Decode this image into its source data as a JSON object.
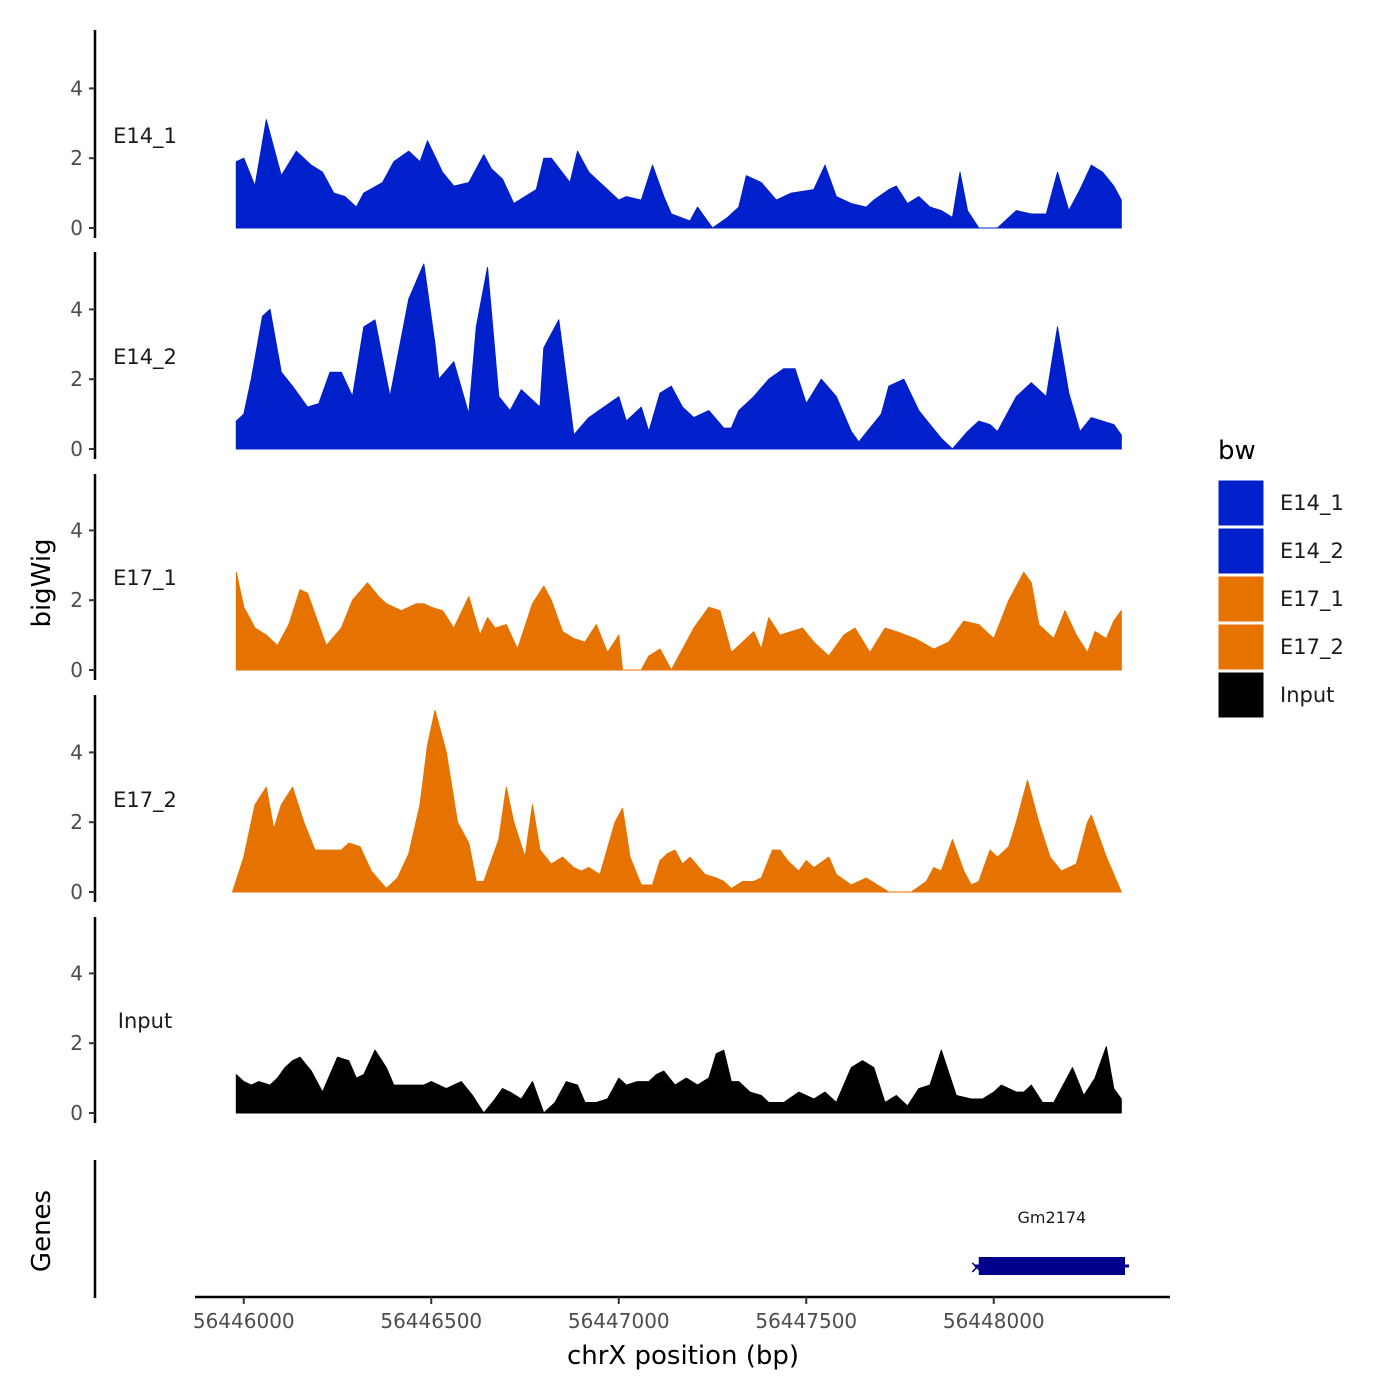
{
  "chart_data": {
    "type": "area",
    "ylabel": "bigWig",
    "xlabel": "chrX position (bp)",
    "genes_label": "Genes",
    "xlim": [
      56445870,
      56448470
    ],
    "ylim": [
      0,
      5.6
    ],
    "yticks": [
      0,
      2,
      4
    ],
    "ytick_labels": [
      "0",
      "2",
      "4"
    ],
    "xticks": [
      56446000,
      56446500,
      56447000,
      56447500,
      56448000
    ],
    "xtick_labels": [
      "56446000",
      "56446500",
      "56447000",
      "56447500",
      "56448000"
    ],
    "legend": {
      "title": "bw",
      "position": "right",
      "entries": [
        {
          "label": "E14_1",
          "color": "#0020CC"
        },
        {
          "label": "E14_2",
          "color": "#0020CC"
        },
        {
          "label": "E17_1",
          "color": "#E67200"
        },
        {
          "label": "E17_2",
          "color": "#E67200"
        },
        {
          "label": "Input",
          "color": "#000000"
        }
      ]
    },
    "series": [
      {
        "name": "E14_1",
        "color": "#0020CC",
        "x": [
          56445980,
          56446000,
          56446030,
          56446060,
          56446100,
          56446140,
          56446180,
          56446210,
          56446240,
          56446270,
          56446300,
          56446320,
          56446370,
          56446400,
          56446440,
          56446470,
          56446490,
          56446530,
          56446560,
          56446600,
          56446640,
          56446660,
          56446690,
          56446720,
          56446780,
          56446800,
          56446820,
          56446870,
          56446890,
          56446920,
          56447000,
          56447020,
          56447060,
          56447090,
          56447120,
          56447140,
          56447190,
          56447210,
          56447230,
          56447250,
          56447290,
          56447320,
          56447340,
          56447380,
          56447420,
          56447460,
          56447520,
          56447550,
          56447580,
          56447600,
          56447620,
          56447660,
          56447680,
          56447720,
          56447740,
          56447770,
          56447800,
          56447830,
          56447860,
          56447890,
          56447910,
          56447930,
          56447960,
          56447980,
          56448000,
          56448010,
          56448060,
          56448100,
          56448140,
          56448170,
          56448200,
          56448230,
          56448260,
          56448290,
          56448320,
          56448340
        ],
        "values": [
          1.9,
          2.0,
          1.2,
          3.1,
          1.5,
          2.2,
          1.8,
          1.6,
          1.0,
          0.9,
          0.6,
          1.0,
          1.3,
          1.9,
          2.2,
          1.9,
          2.5,
          1.6,
          1.2,
          1.3,
          2.1,
          1.7,
          1.4,
          0.7,
          1.1,
          2.0,
          2.0,
          1.3,
          2.2,
          1.6,
          0.8,
          0.9,
          0.8,
          1.8,
          0.9,
          0.4,
          0.2,
          0.6,
          0.3,
          0.0,
          0.3,
          0.6,
          1.5,
          1.3,
          0.8,
          1.0,
          1.1,
          1.8,
          0.9,
          0.8,
          0.7,
          0.6,
          0.8,
          1.1,
          1.2,
          0.7,
          0.9,
          0.6,
          0.5,
          0.3,
          1.6,
          0.5,
          0.0,
          0.0,
          0.0,
          0.0,
          0.5,
          0.4,
          0.4,
          1.6,
          0.5,
          1.1,
          1.8,
          1.6,
          1.2,
          0.8
        ]
      },
      {
        "name": "E14_2",
        "color": "#0020CC",
        "x": [
          56445980,
          56446000,
          56446020,
          56446050,
          56446070,
          56446100,
          56446130,
          56446170,
          56446200,
          56446230,
          56446260,
          56446290,
          56446320,
          56446350,
          56446390,
          56446440,
          56446480,
          56446510,
          56446520,
          56446560,
          56446600,
          56446620,
          56446650,
          56446680,
          56446710,
          56446740,
          56446790,
          56446800,
          56446840,
          56446880,
          56446920,
          56446960,
          56447000,
          56447020,
          56447060,
          56447080,
          56447110,
          56447140,
          56447170,
          56447200,
          56447240,
          56447280,
          56447300,
          56447320,
          56447360,
          56447400,
          56447440,
          56447470,
          56447500,
          56447540,
          56447580,
          56447620,
          56447640,
          56447670,
          56447700,
          56447720,
          56447760,
          56447800,
          56447830,
          56447860,
          56447890,
          56447930,
          56447960,
          56447990,
          56448010,
          56448060,
          56448100,
          56448140,
          56448170,
          56448200,
          56448230,
          56448260,
          56448290,
          56448320,
          56448340
        ],
        "values": [
          0.8,
          1.0,
          2.0,
          3.8,
          4.0,
          2.2,
          1.8,
          1.2,
          1.3,
          2.2,
          2.2,
          1.5,
          3.5,
          3.7,
          1.5,
          4.3,
          5.3,
          3.0,
          2.0,
          2.5,
          1.0,
          3.5,
          5.2,
          1.5,
          1.1,
          1.7,
          1.2,
          2.9,
          3.7,
          0.4,
          0.9,
          1.2,
          1.5,
          0.8,
          1.2,
          0.5,
          1.6,
          1.8,
          1.2,
          0.9,
          1.1,
          0.6,
          0.6,
          1.1,
          1.5,
          2.0,
          2.3,
          2.3,
          1.3,
          2.0,
          1.5,
          0.5,
          0.2,
          0.6,
          1.0,
          1.8,
          2.0,
          1.1,
          0.7,
          0.3,
          0.0,
          0.5,
          0.8,
          0.7,
          0.5,
          1.5,
          1.9,
          1.5,
          3.5,
          1.6,
          0.5,
          0.9,
          0.8,
          0.7,
          0.4
        ]
      },
      {
        "name": "E17_1",
        "color": "#E67200",
        "x": [
          56445980,
          56446000,
          56446030,
          56446060,
          56446090,
          56446120,
          56446150,
          56446170,
          56446220,
          56446260,
          56446290,
          56446330,
          56446360,
          56446380,
          56446420,
          56446460,
          56446480,
          56446500,
          56446530,
          56446560,
          56446600,
          56446630,
          56446650,
          56446670,
          56446700,
          56446730,
          56446770,
          56446800,
          56446820,
          56446850,
          56446880,
          56446910,
          56446940,
          56446970,
          56447000,
          56447010,
          56447060,
          56447080,
          56447110,
          56447140,
          56447200,
          56447240,
          56447270,
          56447300,
          56447320,
          56447360,
          56447380,
          56447400,
          56447430,
          56447460,
          56447490,
          56447520,
          56447560,
          56447600,
          56447630,
          56447670,
          56447710,
          56447740,
          56447790,
          56447840,
          56447880,
          56447920,
          56447960,
          56448000,
          56448040,
          56448080,
          56448100,
          56448120,
          56448160,
          56448190,
          56448220,
          56448250,
          56448270,
          56448300,
          56448320,
          56448340
        ],
        "values": [
          2.8,
          1.8,
          1.2,
          1.0,
          0.7,
          1.3,
          2.3,
          2.2,
          0.7,
          1.2,
          2.0,
          2.5,
          2.1,
          1.9,
          1.7,
          1.9,
          1.9,
          1.8,
          1.7,
          1.2,
          2.1,
          1.0,
          1.5,
          1.2,
          1.3,
          0.6,
          1.9,
          2.4,
          2.0,
          1.1,
          0.9,
          0.8,
          1.3,
          0.5,
          1.0,
          0.0,
          0.0,
          0.4,
          0.6,
          0.0,
          1.2,
          1.8,
          1.7,
          0.5,
          0.7,
          1.1,
          0.6,
          1.5,
          1.0,
          1.1,
          1.2,
          0.8,
          0.4,
          1.0,
          1.2,
          0.5,
          1.2,
          1.1,
          0.9,
          0.6,
          0.8,
          1.4,
          1.3,
          0.9,
          2.0,
          2.8,
          2.5,
          1.3,
          0.9,
          1.7,
          1.0,
          0.5,
          1.1,
          0.9,
          1.4,
          1.7
        ]
      },
      {
        "name": "E17_2",
        "color": "#E67200",
        "x": [
          56445970,
          56446000,
          56446030,
          56446060,
          56446080,
          56446100,
          56446130,
          56446160,
          56446190,
          56446230,
          56446260,
          56446280,
          56446310,
          56446340,
          56446380,
          56446410,
          56446440,
          56446470,
          56446490,
          56446510,
          56446540,
          56446570,
          56446600,
          56446620,
          56446640,
          56446680,
          56446700,
          56446720,
          56446750,
          56446770,
          56446790,
          56446820,
          56446850,
          56446880,
          56446900,
          56446920,
          56446950,
          56446990,
          56447010,
          56447030,
          56447060,
          56447090,
          56447110,
          56447130,
          56447150,
          56447170,
          56447190,
          56447230,
          56447260,
          56447280,
          56447300,
          56447330,
          56447360,
          56447380,
          56447410,
          56447430,
          56447450,
          56447480,
          56447500,
          56447520,
          56447560,
          56447580,
          56447620,
          56447660,
          56447690,
          56447720,
          56447760,
          56447780,
          56447820,
          56447840,
          56447860,
          56447890,
          56447920,
          56447940,
          56447960,
          56447990,
          56448010,
          56448040,
          56448060,
          56448090,
          56448120,
          56448150,
          56448180,
          56448220,
          56448250,
          56448260,
          56448300,
          56448340
        ],
        "values": [
          0.0,
          1.0,
          2.5,
          3.0,
          1.8,
          2.5,
          3.0,
          2.0,
          1.2,
          1.2,
          1.2,
          1.4,
          1.3,
          0.6,
          0.1,
          0.4,
          1.1,
          2.5,
          4.2,
          5.2,
          4.0,
          2.0,
          1.4,
          0.3,
          0.3,
          1.5,
          3.0,
          2.0,
          1.0,
          2.5,
          1.2,
          0.8,
          1.0,
          0.7,
          0.6,
          0.7,
          0.5,
          2.0,
          2.4,
          1.0,
          0.2,
          0.2,
          0.9,
          1.1,
          1.2,
          0.8,
          1.0,
          0.5,
          0.4,
          0.3,
          0.1,
          0.3,
          0.3,
          0.4,
          1.2,
          1.2,
          0.9,
          0.6,
          0.9,
          0.7,
          1.0,
          0.5,
          0.2,
          0.4,
          0.2,
          0.0,
          0.0,
          0.0,
          0.3,
          0.7,
          0.6,
          1.5,
          0.6,
          0.2,
          0.3,
          1.2,
          1.0,
          1.3,
          2.0,
          3.2,
          2.0,
          1.0,
          0.6,
          0.8,
          2.0,
          2.2,
          1.0,
          0.0
        ]
      },
      {
        "name": "Input",
        "color": "#000000",
        "x": [
          56445980,
          56446000,
          56446020,
          56446040,
          56446070,
          56446090,
          56446110,
          56446130,
          56446150,
          56446180,
          56446210,
          56446250,
          56446280,
          56446300,
          56446320,
          56446350,
          56446380,
          56446400,
          56446440,
          56446480,
          56446500,
          56446540,
          56446560,
          56446580,
          56446610,
          56446640,
          56446670,
          56446690,
          56446710,
          56446740,
          56446770,
          56446800,
          56446830,
          56446860,
          56446890,
          56446910,
          56446940,
          56446970,
          56447000,
          56447020,
          56447050,
          56447080,
          56447100,
          56447120,
          56447150,
          56447180,
          56447210,
          56447240,
          56447260,
          56447280,
          56447300,
          56447320,
          56447350,
          56447380,
          56447400,
          56447440,
          56447480,
          56447520,
          56447550,
          56447580,
          56447620,
          56447650,
          56447680,
          56447710,
          56447740,
          56447770,
          56447800,
          56447830,
          56447860,
          56447900,
          56447940,
          56447970,
          56448000,
          56448020,
          56448060,
          56448080,
          56448100,
          56448130,
          56448160,
          56448190,
          56448210,
          56448240,
          56448270,
          56448300,
          56448320,
          56448340
        ],
        "values": [
          1.1,
          0.9,
          0.8,
          0.9,
          0.8,
          1.0,
          1.3,
          1.5,
          1.6,
          1.2,
          0.6,
          1.6,
          1.5,
          1.0,
          1.1,
          1.8,
          1.3,
          0.8,
          0.8,
          0.8,
          0.9,
          0.7,
          0.8,
          0.9,
          0.5,
          0.0,
          0.4,
          0.7,
          0.6,
          0.4,
          0.9,
          0.0,
          0.3,
          0.9,
          0.8,
          0.3,
          0.3,
          0.4,
          1.0,
          0.8,
          0.9,
          0.9,
          1.1,
          1.2,
          0.8,
          1.0,
          0.8,
          1.0,
          1.7,
          1.8,
          0.9,
          0.9,
          0.6,
          0.5,
          0.3,
          0.3,
          0.6,
          0.4,
          0.6,
          0.3,
          1.3,
          1.5,
          1.3,
          0.3,
          0.5,
          0.2,
          0.7,
          0.8,
          1.8,
          0.5,
          0.4,
          0.4,
          0.6,
          0.8,
          0.6,
          0.6,
          0.8,
          0.3,
          0.3,
          0.9,
          1.3,
          0.5,
          1.0,
          1.9,
          0.7,
          0.4
        ]
      }
    ],
    "genes": [
      {
        "name": "Gm2174",
        "start": 56447960,
        "end": 56448350,
        "color": "#00008B",
        "strand_mark": "×"
      }
    ]
  }
}
